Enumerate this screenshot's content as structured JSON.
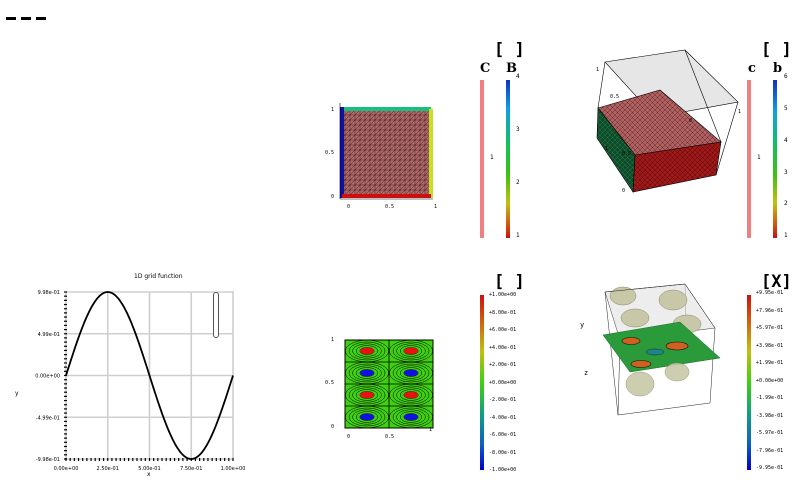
{
  "toolbar": {
    "menu_icon": "hamburger-icon"
  },
  "panels": {
    "top_left_2d": {
      "title_bracket": "[ ]",
      "cb_labels": [
        "C",
        "B"
      ],
      "cb_single_tick": "1",
      "cb_ticks": [
        "4",
        "3",
        "2",
        "1"
      ],
      "x_ticks": [
        "0",
        "0.5",
        "1"
      ],
      "y_ticks": [
        "1",
        "0.5",
        "0"
      ]
    },
    "top_right_3d": {
      "title_bracket": "[ ]",
      "cb_labels": [
        "c",
        "b"
      ],
      "cb_single_tick": "1",
      "cb_ticks": [
        "6",
        "5",
        "4",
        "3",
        "2",
        "1"
      ],
      "axis_ticks": [
        "1",
        "0.5",
        "0",
        "1",
        "0.5",
        "0",
        "1"
      ]
    },
    "bottom_left_1d": {
      "title": "1D grid function",
      "xlabel": "x",
      "ylabel": "y",
      "x_ticks": [
        "0.00e+00",
        "2.50e-01",
        "5.00e-01",
        "7.50e-01",
        "1.00e+00"
      ],
      "y_ticks": [
        "9.98e-01",
        "4.99e-01",
        "0.00e+00",
        "-4.99e-01",
        "-9.98e-01"
      ]
    },
    "bottom_mid_contour": {
      "title_bracket": "[ ]",
      "x_ticks": [
        "0",
        "0.5",
        "1"
      ],
      "y_ticks": [
        "1",
        "0.5",
        "0"
      ],
      "cb_ticks": [
        "+1.00e+00",
        "+8.00e-01",
        "+6.00e-01",
        "+4.00e-01",
        "+2.00e-01",
        "+0.00e+00",
        "-2.00e-01",
        "-4.00e-01",
        "-6.00e-01",
        "-8.00e-01",
        "-1.00e+00"
      ]
    },
    "bottom_right_3d": {
      "title_bracket": "[X]",
      "axis_labels": [
        "y",
        "z"
      ],
      "cb_ticks": [
        "+9.95e-01",
        "+7.96e-01",
        "+5.97e-01",
        "+3.98e-01",
        "+1.99e-01",
        "+0.00e+00",
        "-1.99e-01",
        "-3.98e-01",
        "-5.97e-01",
        "-7.96e-01",
        "-9.95e-01"
      ]
    }
  },
  "chart_data": [
    {
      "type": "line",
      "title": "1D grid function",
      "xlabel": "x",
      "ylabel": "y",
      "x": [
        0,
        0.05,
        0.1,
        0.15,
        0.2,
        0.25,
        0.3,
        0.35,
        0.4,
        0.45,
        0.5,
        0.55,
        0.6,
        0.65,
        0.7,
        0.75,
        0.8,
        0.85,
        0.9,
        0.95,
        1.0
      ],
      "y": [
        0,
        0.309,
        0.588,
        0.809,
        0.951,
        0.998,
        0.951,
        0.809,
        0.588,
        0.309,
        0,
        -0.309,
        -0.588,
        -0.809,
        -0.951,
        -0.998,
        -0.951,
        -0.809,
        -0.588,
        -0.309,
        0
      ],
      "xlim": [
        0,
        1
      ],
      "ylim": [
        -0.998,
        0.998
      ],
      "grid": true
    },
    {
      "type": "heatmap",
      "xlim": [
        0,
        1
      ],
      "ylim": [
        0,
        1
      ],
      "zlim": [
        -1,
        1
      ],
      "maxima": [
        [
          0.25,
          0.875
        ],
        [
          0.75,
          0.875
        ],
        [
          0.25,
          0.375
        ],
        [
          0.75,
          0.375
        ]
      ],
      "minima": [
        [
          0.25,
          0.625
        ],
        [
          0.75,
          0.625
        ],
        [
          0.25,
          0.125
        ],
        [
          0.75,
          0.125
        ]
      ]
    }
  ]
}
